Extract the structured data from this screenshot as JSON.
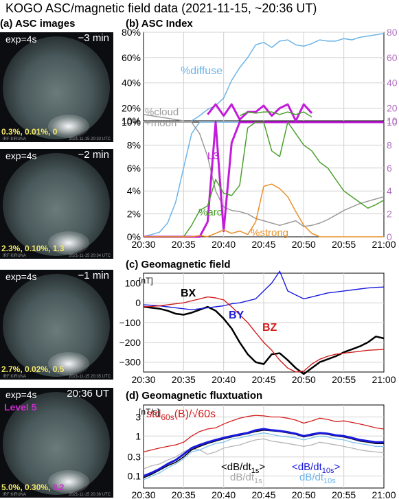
{
  "title": "KOGO ASC/magnetic field data (2021-11-15, ~20:36 UT)",
  "section_a": "(a) ASC images",
  "section_b": "(b) ASC Index",
  "section_c": "(c) Geomagnetic field",
  "section_d": "(d) Geomagnetic fluxtuation",
  "asc_images": [
    {
      "exp": "exp=4s",
      "time": "−3 min",
      "values": [
        "0.3%,",
        "0.01%,",
        "0"
      ],
      "footer_left": "IRF KIRUNA",
      "footer_right": "2021-11-15 20:33 UTC",
      "level": ""
    },
    {
      "exp": "exp=4s",
      "time": "−2 min",
      "values": [
        "2.3%,",
        "0.10%,",
        "1.3"
      ],
      "footer_left": "IRF KIRUNA",
      "footer_right": "2021-11-15 20:34 UTC",
      "level": ""
    },
    {
      "exp": "exp=4s",
      "time": "−1 min",
      "values": [
        "2.7%,",
        "0.02%,",
        "0.5"
      ],
      "footer_left": "IRF KIRUNA",
      "footer_right": "2021-11-15 20:35 UTC",
      "level": ""
    },
    {
      "exp": "exp=4s",
      "time": "20:36 UT",
      "values": [
        "5.0%,",
        "0.30%,",
        "8.2"
      ],
      "footer_left": "IRF KIRUNA",
      "footer_right": "2021-11-15 20:36 UTC",
      "level": "Level 5"
    }
  ],
  "chart_data": [
    {
      "type": "line",
      "panel": "asc_index_upper",
      "x": [
        "20:30",
        "20:31",
        "20:32",
        "20:33",
        "20:34",
        "20:35",
        "20:36",
        "20:37",
        "20:38",
        "20:39",
        "20:40",
        "20:41",
        "20:42",
        "20:43",
        "20:44",
        "20:45",
        "20:46",
        "20:47",
        "20:48",
        "20:49",
        "20:50",
        "20:51",
        "20:52",
        "20:53",
        "20:54",
        "20:55",
        "20:56",
        "20:57",
        "20:58",
        "20:59",
        "21:00"
      ],
      "ylim": [
        10,
        80
      ],
      "yticks": [
        "10%",
        "20%",
        "40%",
        "60%",
        "80%"
      ],
      "y2ticks": [
        "10",
        "20",
        "40",
        "60",
        "80"
      ],
      "series": [
        {
          "name": "%diffuse",
          "color": "#6cb4e8",
          "values": [
            null,
            null,
            null,
            null,
            null,
            null,
            10,
            14,
            19,
            22,
            28,
            42,
            52,
            60,
            70,
            72,
            68,
            73,
            74,
            70,
            69,
            71,
            74,
            73,
            73,
            75,
            74,
            76,
            77,
            78,
            79
          ]
        },
        {
          "name": "%cloud +moon",
          "color": "#9a9a9a",
          "values": [
            15,
            14,
            13,
            12,
            11,
            10,
            null,
            null,
            null,
            null,
            null,
            null,
            null,
            null,
            null,
            null,
            null,
            null,
            null,
            null,
            null,
            null,
            null,
            null,
            null,
            null,
            null,
            null,
            null,
            null,
            null
          ]
        },
        {
          "name": "L3",
          "color": "#c21bd9",
          "values": [
            null,
            null,
            null,
            null,
            null,
            null,
            null,
            null,
            15,
            23,
            14,
            23,
            11,
            17,
            17,
            22,
            14,
            20,
            23,
            10,
            23,
            16,
            null,
            null,
            null,
            null,
            null,
            null,
            null,
            null,
            null
          ]
        },
        {
          "name": "%arc",
          "color": "#4aa02c",
          "values": [
            null,
            null,
            null,
            null,
            null,
            null,
            null,
            null,
            null,
            null,
            null,
            null,
            14,
            17,
            16,
            17,
            17,
            15,
            17,
            15,
            17,
            13,
            null,
            null,
            null,
            null,
            null,
            null,
            null,
            null,
            null
          ]
        }
      ]
    },
    {
      "type": "line",
      "panel": "asc_index_lower",
      "x": [
        "20:30",
        "20:31",
        "20:32",
        "20:33",
        "20:34",
        "20:35",
        "20:36",
        "20:37",
        "20:38",
        "20:39",
        "20:40",
        "20:41",
        "20:42",
        "20:43",
        "20:44",
        "20:45",
        "20:46",
        "20:47",
        "20:48",
        "20:49",
        "20:50",
        "20:51",
        "20:52",
        "20:53",
        "20:54",
        "20:55",
        "20:56",
        "20:57",
        "20:58",
        "20:59",
        "21:00"
      ],
      "xticks": [
        "20:30",
        "20:35",
        "20:40",
        "20:45",
        "20:50",
        "20:55",
        "21:00"
      ],
      "ylim": [
        0,
        10
      ],
      "yticks": [
        "0%",
        "2%",
        "4%",
        "6%",
        "8%",
        "10%"
      ],
      "y2ticks": [
        "0",
        "2",
        "4",
        "6",
        "8",
        "10"
      ],
      "series": [
        {
          "name": "%diffuse",
          "color": "#6cb4e8",
          "values": [
            0,
            0.2,
            0.4,
            1.2,
            3,
            6,
            9,
            10,
            10,
            10,
            10,
            10,
            10,
            10,
            10,
            10,
            10,
            10,
            10,
            10,
            10,
            10,
            10,
            10,
            10,
            10,
            10,
            10,
            10,
            10,
            10
          ]
        },
        {
          "name": "%cloud",
          "color": "#9a9a9a",
          "values": [
            10,
            10,
            10,
            10,
            10,
            10,
            10,
            9,
            7,
            4,
            2.6,
            2.3,
            2.2,
            2,
            1.6,
            1.4,
            1.2,
            1.0,
            1.2,
            1.4,
            0.9,
            1.0,
            1.2,
            1.5,
            1.9,
            2.3,
            2.6,
            2.9,
            3.1,
            3.3,
            3.5
          ]
        },
        {
          "name": "L3",
          "color": "#c21bd9",
          "values": [
            0,
            0,
            0,
            0,
            0,
            0,
            0,
            0,
            1.3,
            10,
            0.5,
            8.2,
            10,
            10,
            10,
            10,
            10,
            10,
            10,
            10,
            10,
            10,
            10,
            10,
            10,
            10,
            10,
            10,
            10,
            10,
            10
          ]
        },
        {
          "name": "%arc",
          "color": "#4aa02c",
          "values": [
            0,
            0,
            0,
            0,
            0,
            0,
            1,
            2.3,
            2.7,
            5,
            3.8,
            3.6,
            4.5,
            9.5,
            10,
            10,
            7.5,
            7,
            10,
            9,
            8,
            7.5,
            6.5,
            6,
            5,
            4,
            3.5,
            3,
            2.5,
            2.8,
            3.2
          ]
        },
        {
          "name": "%strong",
          "color": "#e8902a",
          "values": [
            0,
            0,
            0,
            0,
            0,
            0,
            0.01,
            0.1,
            0.02,
            0.3,
            0.6,
            0.3,
            0.5,
            0.2,
            1.3,
            4.4,
            4.6,
            4.2,
            3.5,
            2.2,
            1.0,
            0.3,
            0,
            0,
            0,
            0,
            0,
            0,
            0,
            0,
            0
          ]
        }
      ]
    },
    {
      "type": "line",
      "panel": "geomagnetic_field",
      "ylabel": "[nT]",
      "x": [
        "20:30",
        "20:31",
        "20:32",
        "20:33",
        "20:34",
        "20:35",
        "20:36",
        "20:37",
        "20:38",
        "20:39",
        "20:40",
        "20:41",
        "20:42",
        "20:43",
        "20:44",
        "20:45",
        "20:46",
        "20:47",
        "20:48",
        "20:49",
        "20:50",
        "20:51",
        "20:52",
        "20:53",
        "20:54",
        "20:55",
        "20:56",
        "20:57",
        "20:58",
        "20:59",
        "21:00"
      ],
      "xticks": [
        "20:30",
        "20:35",
        "20:40",
        "20:45",
        "20:50",
        "20:55",
        "21:00"
      ],
      "ylim": [
        -350,
        150
      ],
      "yticks": [
        "100",
        "0",
        "−100",
        "−200",
        "−300"
      ],
      "series": [
        {
          "name": "BX",
          "color": "#000000",
          "values": [
            -20,
            -25,
            -30,
            -40,
            -55,
            -60,
            -50,
            -35,
            -20,
            -40,
            -80,
            -130,
            -200,
            -260,
            -300,
            -310,
            -260,
            -255,
            -290,
            -330,
            -360,
            -330,
            -300,
            -285,
            -270,
            -250,
            -235,
            -220,
            -200,
            -170,
            -180
          ]
        },
        {
          "name": "BY",
          "color": "#1a1adc",
          "values": [
            -10,
            -12,
            -15,
            -20,
            -25,
            -30,
            -35,
            -30,
            -25,
            -20,
            -15,
            -5,
            0,
            10,
            20,
            60,
            100,
            160,
            60,
            40,
            20,
            30,
            40,
            50,
            55,
            60,
            65,
            70,
            75,
            78,
            80
          ]
        },
        {
          "name": "BZ",
          "color": "#d21e1e",
          "values": [
            -20,
            -18,
            -15,
            -10,
            -5,
            0,
            10,
            20,
            30,
            25,
            15,
            -20,
            -60,
            -100,
            -150,
            -200,
            -240,
            -290,
            -330,
            -350,
            -345,
            -310,
            -285,
            -270,
            -260,
            -255,
            -250,
            -245,
            -240,
            -238,
            -235
          ]
        }
      ]
    },
    {
      "type": "line",
      "panel": "geomagnetic_fluctuation",
      "ylabel": "[nT/s]",
      "yscale": "log",
      "x": [
        "20:30",
        "20:31",
        "20:32",
        "20:33",
        "20:34",
        "20:35",
        "20:36",
        "20:37",
        "20:38",
        "20:39",
        "20:40",
        "20:41",
        "20:42",
        "20:43",
        "20:44",
        "20:45",
        "20:46",
        "20:47",
        "20:48",
        "20:49",
        "20:50",
        "20:51",
        "20:52",
        "20:53",
        "20:54",
        "20:55",
        "20:56",
        "20:57",
        "20:58",
        "20:59",
        "21:00"
      ],
      "xticks": [
        "20:30",
        "20:35",
        "20:40",
        "20:45",
        "20:50",
        "20:55",
        "21:00"
      ],
      "ylim": [
        0.05,
        6
      ],
      "yticks": [
        "3",
        "1",
        "0.3",
        "0.1"
      ],
      "series": [
        {
          "name": "std60s(B)/√60s",
          "color": "#d21e1e",
          "values": [
            0.4,
            0.45,
            0.5,
            0.55,
            0.6,
            0.7,
            1.0,
            1.3,
            1.5,
            1.6,
            2.0,
            2.4,
            2.8,
            3.1,
            3.3,
            3.2,
            3.0,
            3.0,
            2.8,
            2.5,
            2.1,
            2.4,
            2.8,
            2.6,
            2.3,
            2.4,
            2.2,
            2.0,
            1.8,
            1.6,
            1.5
          ]
        },
        {
          "name": "<dB/dt10s>",
          "color": "#1a1adc",
          "values": [
            0.1,
            0.12,
            0.15,
            0.2,
            0.25,
            0.35,
            0.5,
            0.6,
            0.7,
            0.8,
            0.9,
            1.0,
            1.1,
            1.2,
            1.4,
            1.5,
            1.4,
            1.35,
            1.25,
            1.15,
            1.0,
            1.1,
            1.2,
            1.15,
            1.05,
            1.0,
            0.9,
            0.8,
            0.75,
            0.7,
            0.7
          ]
        },
        {
          "name": "<dB/dt1s>",
          "color": "#000000",
          "values": [
            0.09,
            0.11,
            0.14,
            0.18,
            0.22,
            0.3,
            0.45,
            0.55,
            0.65,
            0.75,
            0.85,
            0.95,
            1.05,
            1.15,
            1.3,
            1.4,
            1.35,
            1.3,
            1.2,
            1.1,
            0.95,
            1.05,
            1.15,
            1.1,
            1.0,
            0.95,
            0.85,
            0.75,
            0.7,
            0.65,
            0.65
          ]
        },
        {
          "name": "dB/dt10s",
          "color": "#7fc4ec",
          "values": [
            0.08,
            0.1,
            0.12,
            0.16,
            0.2,
            0.27,
            0.4,
            0.45,
            0.55,
            0.65,
            0.7,
            0.85,
            0.9,
            1.0,
            1.1,
            1.2,
            1.1,
            1.0,
            0.95,
            0.9,
            0.8,
            0.9,
            1.0,
            0.95,
            0.85,
            0.8,
            0.7,
            0.65,
            0.6,
            0.55,
            0.55
          ]
        },
        {
          "name": "dB/dt1s",
          "color": "#b5b5b5",
          "values": [
            0.15,
            0.18,
            0.2,
            0.25,
            0.3,
            0.4,
            0.5,
            0.45,
            0.35,
            0.4,
            0.5,
            0.55,
            0.6,
            0.7,
            0.8,
            0.85,
            0.75,
            0.7,
            0.65,
            0.6,
            0.55,
            0.6,
            0.7,
            0.65,
            0.6,
            0.55,
            0.5,
            0.45,
            0.42,
            0.4,
            0.38
          ]
        }
      ]
    }
  ],
  "labels_b": {
    "diffuse": "%diffuse",
    "cloud1": "%cloud",
    "cloud2": "+moon",
    "l3": "L3",
    "arc": "%arc",
    "strong": "%strong"
  },
  "labels_c": {
    "bx": "BX",
    "by": "BY",
    "bz": "BZ"
  },
  "labels_d": {
    "std_main": "std",
    "std_sub": "60s",
    "std_rest": "(B)/√60s",
    "blk_main": "<dB/dt",
    "blk_sub": "1s",
    "blk_end": ">",
    "gry_main": "dB/dt",
    "gry_sub": "1s",
    "blu_main": "<dB/dt",
    "blu_sub": "10s",
    "blu_end": ">",
    "lbl_main": "dB/dt",
    "lbl_sub": "10s"
  },
  "colors": {
    "diffuse": "#6cb4e8",
    "cloud": "#9a9a9a",
    "l3": "#c21bd9",
    "arc": "#4aa02c",
    "strong": "#e8902a",
    "bx": "#000000",
    "by": "#1a1adc",
    "bz": "#d21e1e"
  }
}
